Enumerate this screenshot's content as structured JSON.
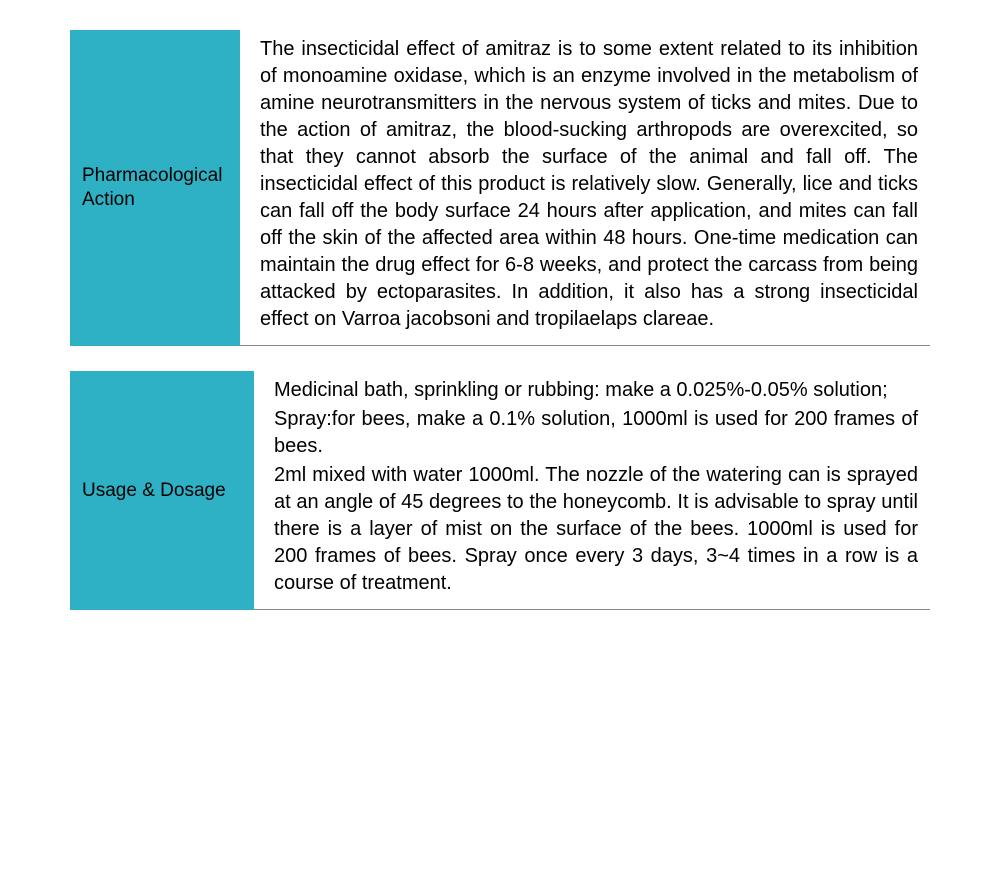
{
  "colors": {
    "label_background": "#2eb1c4",
    "label_text": "#000000",
    "content_text": "#000000",
    "page_background": "#ffffff",
    "divider": "#888888"
  },
  "typography": {
    "label_fontsize": 19,
    "content_fontsize": 20,
    "content_align": "justify",
    "font_family": "Arial, Helvetica, sans-serif"
  },
  "layout": {
    "label_width_1": 170,
    "label_width_2": 184,
    "section_gap": 25
  },
  "sections": [
    {
      "label": "Pharmacological Action",
      "paragraphs": [
        "The insecticidal effect of amitraz is to some extent related to its inhibition of monoamine oxidase, which is an enzyme involved in the metabolism of amine neurotransmitters in the nervous system of ticks and mites. Due to the action of amitraz, the blood-sucking arthropods are overexcited, so that they cannot absorb the surface of the animal and fall off. The insecticidal effect of this product is relatively slow. Generally, lice and ticks can fall off the body surface 24 hours after application, and mites can fall off the skin of the affected area within 48 hours. One-time medication can maintain the drug effect for 6-8 weeks, and protect the carcass from being attacked by ectoparasites. In addition, it also has a strong insecticidal effect on Varroa jacobsoni and tropilaelaps clareae."
      ]
    },
    {
      "label": "Usage & Dosage",
      "paragraphs": [
        "Medicinal bath, sprinkling or rubbing: make a 0.025%-0.05% solution;",
        "Spray:for bees, make a 0.1% solution, 1000ml is used for 200 frames of bees.",
        "2ml mixed with water 1000ml. The nozzle of the watering can is sprayed at an angle of 45 degrees to the honeycomb. It is advisable to spray until there is a layer of mist on the surface of the bees. 1000ml is used for 200 frames of bees. Spray once every 3 days, 3~4 times in a row is a course of treatment."
      ]
    }
  ]
}
